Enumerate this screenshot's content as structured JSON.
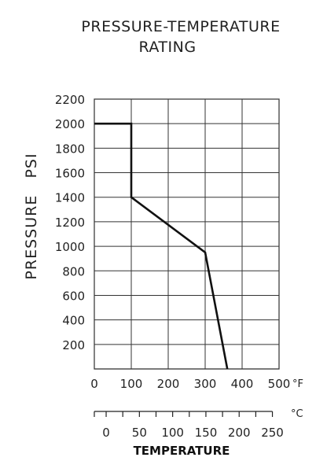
{
  "chart_data": {
    "type": "line",
    "title_line1": "PRESSURE-TEMPERATURE",
    "title_line2": "RATING",
    "ylabel": "PRESSURE   PSI",
    "xlabel": "TEMPERATURE",
    "x_unit_f": "°F",
    "x_unit_c": "°C",
    "xlim_f": [
      0,
      500
    ],
    "ylim": [
      0,
      2200
    ],
    "grid": true,
    "y_ticks": [
      200,
      400,
      600,
      800,
      1000,
      1200,
      1400,
      1600,
      1800,
      2000,
      2200
    ],
    "y_tick_labels": [
      "200",
      "400",
      "600",
      "800",
      "1000",
      "1200",
      "1400",
      "1600",
      "1800",
      "2000",
      "2200"
    ],
    "x_ticks_f": [
      0,
      100,
      200,
      300,
      400,
      500
    ],
    "x_tick_labels_f": [
      "0",
      "100",
      "200",
      "300",
      "400",
      "500"
    ],
    "x_ticks_c_minor": [
      -17.8,
      0,
      25,
      50,
      75,
      100,
      125,
      150,
      175,
      200,
      225,
      250
    ],
    "x_ticks_c": [
      0,
      50,
      100,
      150,
      200,
      250
    ],
    "x_tick_labels_c": [
      "0",
      "50",
      "100",
      "150",
      "200",
      "250"
    ],
    "series": [
      {
        "x": [
          0,
          100,
          100,
          300,
          360
        ],
        "y": [
          2000,
          2000,
          1400,
          950,
          0
        ]
      }
    ]
  }
}
